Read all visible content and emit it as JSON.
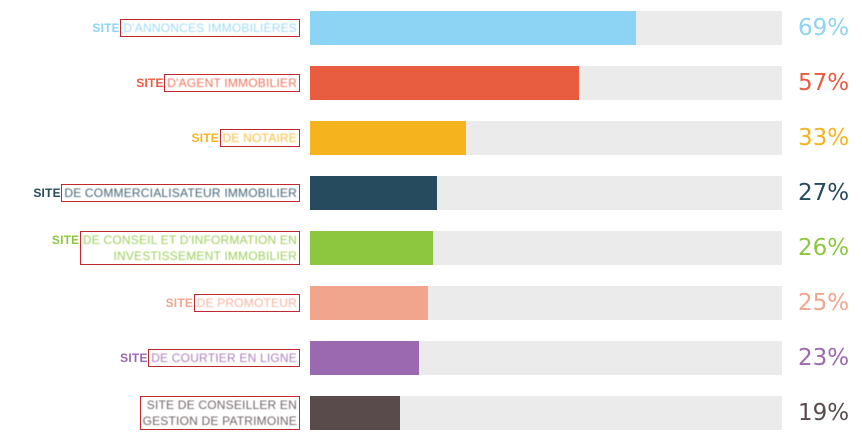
{
  "chart_data": {
    "type": "bar",
    "orientation": "horizontal",
    "categories": [
      "SITE D'ANNONCES IMMOBILIÈRES",
      "SITE D'AGENT IMMOBILIER",
      "SITE DE NOTAIRE",
      "SITE DE COMMERCIALISATEUR IMMOBILIER",
      "SITE DE CONSEIL ET D'INFORMATION EN INVESTISSEMENT IMMOBILIER",
      "SITE DE PROMOTEUR",
      "SITE DE COURTIER EN LIGNE",
      "SITE DE CONSEILLER EN GESTION DE PATRIMOINE"
    ],
    "label_lead": [
      "SITE",
      "SITE",
      "SITE",
      "SITE",
      "SITE",
      "SITE",
      "SITE",
      ""
    ],
    "label_rest": [
      [
        "D'ANNONCES IMMOBILIÈRES"
      ],
      [
        "D'AGENT IMMOBILIER"
      ],
      [
        "DE NOTAIRE"
      ],
      [
        "DE COMMERCIALISATEUR IMMOBILIER"
      ],
      [
        "DE CONSEIL ET D'INFORMATION EN",
        "INVESTISSEMENT IMMOBILIER"
      ],
      [
        "DE PROMOTEUR"
      ],
      [
        "DE COURTIER EN LIGNE"
      ],
      [
        "SITE DE CONSEILLER EN",
        "GESTION DE PATRIMOINE"
      ]
    ],
    "values": [
      69,
      57,
      33,
      27,
      26,
      25,
      23,
      19
    ],
    "value_labels": [
      "69%",
      "57%",
      "33%",
      "27%",
      "26%",
      "25%",
      "23%",
      "19%"
    ],
    "colors": [
      "#8dd3f4",
      "#e85c3f",
      "#f5b31d",
      "#264a5e",
      "#8dc63f",
      "#f2a58d",
      "#9b69b0",
      "#594a4c"
    ],
    "label_colors": [
      "#8dd3f4",
      "#e85c3f",
      "#f5b31d",
      "#264a5e",
      "#8dc63f",
      "#f2a58d",
      "#9b69b0",
      "#594a4c"
    ],
    "track_color": "#ebebeb",
    "xlim": [
      0,
      100
    ],
    "grid": false,
    "legend": "none"
  }
}
